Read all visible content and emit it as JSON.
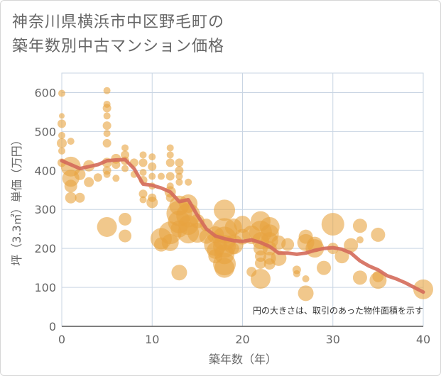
{
  "title_lines": [
    "神奈川県横浜市中区野毛町の",
    "築年数別中古マンション価格"
  ],
  "note": "円の大きさは、取引のあった物件面積を示す",
  "colors": {
    "bubble": "#e8a440",
    "line": "#d46a5a",
    "grid": "#c9d5e3"
  },
  "chart_data": {
    "type": "scatter",
    "xlabel": "築年数（年）",
    "ylabel": "坪（3.3㎡）単価（万円）",
    "xlim": [
      0,
      40
    ],
    "ylim": [
      0,
      650
    ],
    "xticks": [
      0,
      10,
      20,
      30,
      40
    ],
    "yticks": [
      0,
      100,
      200,
      300,
      400,
      500,
      600
    ],
    "grid": true,
    "series": [
      {
        "kind": "bubble",
        "points": [
          {
            "x": 0,
            "y": 598,
            "s": 5
          },
          {
            "x": 0,
            "y": 540,
            "s": 4
          },
          {
            "x": 0,
            "y": 520,
            "s": 6
          },
          {
            "x": 0,
            "y": 490,
            "s": 5
          },
          {
            "x": 0,
            "y": 470,
            "s": 7
          },
          {
            "x": 0,
            "y": 450,
            "s": 5
          },
          {
            "x": 0,
            "y": 420,
            "s": 6
          },
          {
            "x": 1,
            "y": 410,
            "s": 14
          },
          {
            "x": 1,
            "y": 380,
            "s": 12
          },
          {
            "x": 1,
            "y": 360,
            "s": 9
          },
          {
            "x": 1,
            "y": 330,
            "s": 8
          },
          {
            "x": 1,
            "y": 475,
            "s": 5
          },
          {
            "x": 2,
            "y": 390,
            "s": 8
          },
          {
            "x": 2,
            "y": 330,
            "s": 7
          },
          {
            "x": 3,
            "y": 412,
            "s": 8
          },
          {
            "x": 3,
            "y": 370,
            "s": 7
          },
          {
            "x": 4,
            "y": 382,
            "s": 6
          },
          {
            "x": 5,
            "y": 605,
            "s": 5
          },
          {
            "x": 5,
            "y": 570,
            "s": 5
          },
          {
            "x": 5,
            "y": 560,
            "s": 6
          },
          {
            "x": 5,
            "y": 540,
            "s": 5
          },
          {
            "x": 5,
            "y": 515,
            "s": 6
          },
          {
            "x": 5,
            "y": 495,
            "s": 5
          },
          {
            "x": 5,
            "y": 470,
            "s": 6
          },
          {
            "x": 5,
            "y": 420,
            "s": 7
          },
          {
            "x": 5,
            "y": 400,
            "s": 6
          },
          {
            "x": 5,
            "y": 390,
            "s": 5
          },
          {
            "x": 5,
            "y": 255,
            "s": 14
          },
          {
            "x": 6,
            "y": 430,
            "s": 7
          },
          {
            "x": 6,
            "y": 415,
            "s": 6
          },
          {
            "x": 6,
            "y": 380,
            "s": 5
          },
          {
            "x": 7,
            "y": 458,
            "s": 5
          },
          {
            "x": 7,
            "y": 440,
            "s": 6
          },
          {
            "x": 7,
            "y": 425,
            "s": 6
          },
          {
            "x": 7,
            "y": 405,
            "s": 5
          },
          {
            "x": 7,
            "y": 275,
            "s": 9
          },
          {
            "x": 7,
            "y": 232,
            "s": 9
          },
          {
            "x": 8,
            "y": 420,
            "s": 6
          },
          {
            "x": 8,
            "y": 390,
            "s": 5
          },
          {
            "x": 9,
            "y": 440,
            "s": 5
          },
          {
            "x": 9,
            "y": 420,
            "s": 6
          },
          {
            "x": 9,
            "y": 395,
            "s": 5
          },
          {
            "x": 9,
            "y": 375,
            "s": 6
          },
          {
            "x": 9,
            "y": 340,
            "s": 6
          },
          {
            "x": 9,
            "y": 325,
            "s": 5
          },
          {
            "x": 10,
            "y": 435,
            "s": 5
          },
          {
            "x": 10,
            "y": 410,
            "s": 6
          },
          {
            "x": 10,
            "y": 385,
            "s": 5
          },
          {
            "x": 10,
            "y": 360,
            "s": 5
          },
          {
            "x": 10,
            "y": 330,
            "s": 6
          },
          {
            "x": 10,
            "y": 318,
            "s": 8
          },
          {
            "x": 11,
            "y": 385,
            "s": 5
          },
          {
            "x": 11,
            "y": 225,
            "s": 15
          },
          {
            "x": 11,
            "y": 210,
            "s": 10
          },
          {
            "x": 12,
            "y": 458,
            "s": 5
          },
          {
            "x": 12,
            "y": 440,
            "s": 5
          },
          {
            "x": 12,
            "y": 420,
            "s": 6
          },
          {
            "x": 12,
            "y": 385,
            "s": 6
          },
          {
            "x": 12,
            "y": 360,
            "s": 5
          },
          {
            "x": 12,
            "y": 345,
            "s": 8
          },
          {
            "x": 12,
            "y": 330,
            "s": 6
          },
          {
            "x": 12,
            "y": 240,
            "s": 16
          },
          {
            "x": 12,
            "y": 215,
            "s": 12
          },
          {
            "x": 13,
            "y": 420,
            "s": 6
          },
          {
            "x": 13,
            "y": 400,
            "s": 6
          },
          {
            "x": 13,
            "y": 385,
            "s": 5
          },
          {
            "x": 13,
            "y": 370,
            "s": 5
          },
          {
            "x": 13,
            "y": 310,
            "s": 14
          },
          {
            "x": 13,
            "y": 290,
            "s": 18
          },
          {
            "x": 13,
            "y": 268,
            "s": 16
          },
          {
            "x": 13,
            "y": 250,
            "s": 12
          },
          {
            "x": 13,
            "y": 138,
            "s": 11
          },
          {
            "x": 14,
            "y": 315,
            "s": 13
          },
          {
            "x": 14,
            "y": 285,
            "s": 17
          },
          {
            "x": 14,
            "y": 260,
            "s": 14
          },
          {
            "x": 14,
            "y": 240,
            "s": 15
          },
          {
            "x": 14,
            "y": 370,
            "s": 5
          },
          {
            "x": 15,
            "y": 270,
            "s": 10
          },
          {
            "x": 15,
            "y": 240,
            "s": 14
          },
          {
            "x": 16,
            "y": 260,
            "s": 9
          },
          {
            "x": 16,
            "y": 230,
            "s": 10
          },
          {
            "x": 17,
            "y": 235,
            "s": 12
          },
          {
            "x": 17,
            "y": 210,
            "s": 16
          },
          {
            "x": 17,
            "y": 195,
            "s": 12
          },
          {
            "x": 17,
            "y": 180,
            "s": 10
          },
          {
            "x": 18,
            "y": 298,
            "s": 15
          },
          {
            "x": 18,
            "y": 245,
            "s": 18
          },
          {
            "x": 18,
            "y": 225,
            "s": 17
          },
          {
            "x": 18,
            "y": 205,
            "s": 16
          },
          {
            "x": 18,
            "y": 185,
            "s": 14
          },
          {
            "x": 18,
            "y": 160,
            "s": 16
          },
          {
            "x": 18,
            "y": 150,
            "s": 14
          },
          {
            "x": 19,
            "y": 255,
            "s": 12
          },
          {
            "x": 19,
            "y": 210,
            "s": 14
          },
          {
            "x": 19,
            "y": 200,
            "s": 8
          },
          {
            "x": 20,
            "y": 262,
            "s": 12
          },
          {
            "x": 20,
            "y": 230,
            "s": 11
          },
          {
            "x": 21,
            "y": 235,
            "s": 13
          },
          {
            "x": 21,
            "y": 140,
            "s": 7
          },
          {
            "x": 22,
            "y": 270,
            "s": 14
          },
          {
            "x": 22,
            "y": 242,
            "s": 16
          },
          {
            "x": 22,
            "y": 220,
            "s": 12
          },
          {
            "x": 22,
            "y": 200,
            "s": 10
          },
          {
            "x": 22,
            "y": 180,
            "s": 8
          },
          {
            "x": 22,
            "y": 162,
            "s": 8
          },
          {
            "x": 22,
            "y": 122,
            "s": 14
          },
          {
            "x": 23,
            "y": 255,
            "s": 14
          },
          {
            "x": 23,
            "y": 238,
            "s": 13
          },
          {
            "x": 23,
            "y": 220,
            "s": 12
          },
          {
            "x": 23,
            "y": 200,
            "s": 10
          },
          {
            "x": 23,
            "y": 175,
            "s": 9
          },
          {
            "x": 23,
            "y": 160,
            "s": 8
          },
          {
            "x": 24,
            "y": 215,
            "s": 10
          },
          {
            "x": 24,
            "y": 175,
            "s": 11
          },
          {
            "x": 25,
            "y": 210,
            "s": 9
          },
          {
            "x": 26,
            "y": 145,
            "s": 6
          },
          {
            "x": 26,
            "y": 135,
            "s": 5
          },
          {
            "x": 27,
            "y": 230,
            "s": 10
          },
          {
            "x": 27,
            "y": 215,
            "s": 12
          },
          {
            "x": 27,
            "y": 122,
            "s": 5
          },
          {
            "x": 27,
            "y": 85,
            "s": 11
          },
          {
            "x": 28,
            "y": 210,
            "s": 11
          },
          {
            "x": 28,
            "y": 200,
            "s": 13
          },
          {
            "x": 29,
            "y": 150,
            "s": 10
          },
          {
            "x": 30,
            "y": 262,
            "s": 16
          },
          {
            "x": 30,
            "y": 200,
            "s": 8
          },
          {
            "x": 31,
            "y": 180,
            "s": 10
          },
          {
            "x": 32,
            "y": 208,
            "s": 10
          },
          {
            "x": 33,
            "y": 258,
            "s": 10
          },
          {
            "x": 33,
            "y": 222,
            "s": 5
          },
          {
            "x": 33,
            "y": 125,
            "s": 10
          },
          {
            "x": 35,
            "y": 235,
            "s": 10
          },
          {
            "x": 35,
            "y": 128,
            "s": 8
          },
          {
            "x": 35,
            "y": 118,
            "s": 12
          },
          {
            "x": 40,
            "y": 95,
            "s": 14
          }
        ]
      },
      {
        "kind": "line",
        "points": [
          {
            "x": 0,
            "y": 425
          },
          {
            "x": 2,
            "y": 405
          },
          {
            "x": 4,
            "y": 415
          },
          {
            "x": 5,
            "y": 425
          },
          {
            "x": 6,
            "y": 427
          },
          {
            "x": 7,
            "y": 428
          },
          {
            "x": 8,
            "y": 405
          },
          {
            "x": 9,
            "y": 365
          },
          {
            "x": 10,
            "y": 362
          },
          {
            "x": 11,
            "y": 355
          },
          {
            "x": 12,
            "y": 345
          },
          {
            "x": 13,
            "y": 320
          },
          {
            "x": 14,
            "y": 325
          },
          {
            "x": 15,
            "y": 285
          },
          {
            "x": 16,
            "y": 250
          },
          {
            "x": 17,
            "y": 232
          },
          {
            "x": 18,
            "y": 225
          },
          {
            "x": 19,
            "y": 220
          },
          {
            "x": 20,
            "y": 218
          },
          {
            "x": 21,
            "y": 222
          },
          {
            "x": 22,
            "y": 215
          },
          {
            "x": 23,
            "y": 205
          },
          {
            "x": 24,
            "y": 188
          },
          {
            "x": 25,
            "y": 188
          },
          {
            "x": 26,
            "y": 185
          },
          {
            "x": 27,
            "y": 188
          },
          {
            "x": 28,
            "y": 195
          },
          {
            "x": 29,
            "y": 200
          },
          {
            "x": 30,
            "y": 202
          },
          {
            "x": 31,
            "y": 198
          },
          {
            "x": 32,
            "y": 188
          },
          {
            "x": 33,
            "y": 168
          },
          {
            "x": 34,
            "y": 155
          },
          {
            "x": 35,
            "y": 145
          },
          {
            "x": 36,
            "y": 130
          },
          {
            "x": 37,
            "y": 122
          },
          {
            "x": 38,
            "y": 112
          },
          {
            "x": 39,
            "y": 100
          },
          {
            "x": 40,
            "y": 88
          }
        ]
      }
    ]
  }
}
